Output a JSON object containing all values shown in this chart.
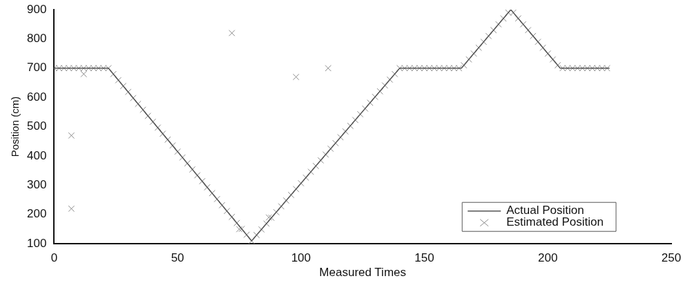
{
  "chart_data": {
    "type": "line",
    "xlabel": "Measured Times",
    "ylabel": "Position (cm)",
    "xlim": [
      0,
      250
    ],
    "xticks": [
      0,
      50,
      100,
      150,
      200,
      250
    ],
    "ylim": [
      100,
      900
    ],
    "yticks": [
      100,
      200,
      300,
      400,
      500,
      600,
      700,
      800,
      900
    ],
    "grid": false,
    "legend": "bottom right",
    "series": [
      {
        "name": "Actual Position",
        "color": "#555555",
        "marker": "none",
        "line_style": "solid",
        "x": [
          0,
          22,
          80,
          140,
          165,
          185,
          205,
          225
        ],
        "values": [
          700,
          700,
          110,
          700,
          700,
          900,
          700,
          700
        ]
      },
      {
        "name": "Estimated Position",
        "type": "scatter",
        "color": "#8c8c8c",
        "marker": "cross",
        "x": [
          0,
          2,
          4,
          6,
          8,
          10,
          12,
          14,
          16,
          18,
          20,
          22,
          24,
          26,
          28,
          30,
          32,
          34,
          36,
          38,
          40,
          42,
          44,
          46,
          48,
          50,
          52,
          54,
          56,
          58,
          60,
          62,
          64,
          66,
          68,
          70,
          72,
          74,
          76,
          78,
          80,
          82,
          84,
          86,
          88,
          90,
          92,
          94,
          96,
          98,
          100,
          102,
          104,
          106,
          108,
          110,
          112,
          114,
          116,
          118,
          120,
          122,
          124,
          126,
          128,
          130,
          132,
          134,
          136,
          138,
          140,
          142,
          144,
          146,
          148,
          150,
          152,
          154,
          156,
          158,
          160,
          162,
          164,
          166,
          168,
          170,
          172,
          174,
          176,
          178,
          180,
          182,
          184,
          186,
          188,
          190,
          192,
          194,
          196,
          198,
          200,
          202,
          204,
          206,
          208,
          210,
          212,
          214,
          216,
          218,
          220,
          222,
          224,
          7,
          7,
          12,
          72,
          98,
          111,
          75,
          87
        ],
        "values": [
          700,
          700,
          700,
          700,
          700,
          700,
          700,
          700,
          700,
          700,
          700,
          700,
          680,
          659,
          639,
          619,
          598,
          578,
          558,
          537,
          517,
          497,
          476,
          456,
          436,
          415,
          395,
          375,
          354,
          334,
          314,
          293,
          273,
          253,
          232,
          212,
          192,
          171,
          151,
          131,
          110,
          130,
          149,
          169,
          189,
          208,
          228,
          248,
          267,
          287,
          307,
          326,
          346,
          366,
          385,
          405,
          425,
          444,
          464,
          484,
          503,
          523,
          543,
          562,
          582,
          602,
          621,
          641,
          661,
          680,
          700,
          700,
          700,
          700,
          700,
          700,
          700,
          700,
          700,
          700,
          700,
          700,
          700,
          710,
          730,
          750,
          770,
          790,
          810,
          830,
          850,
          870,
          890,
          890,
          870,
          850,
          830,
          810,
          790,
          770,
          750,
          730,
          710,
          700,
          700,
          700,
          700,
          700,
          700,
          700,
          700,
          700,
          700,
          220,
          470,
          680,
          820,
          670,
          700,
          150,
          190
        ]
      }
    ]
  }
}
